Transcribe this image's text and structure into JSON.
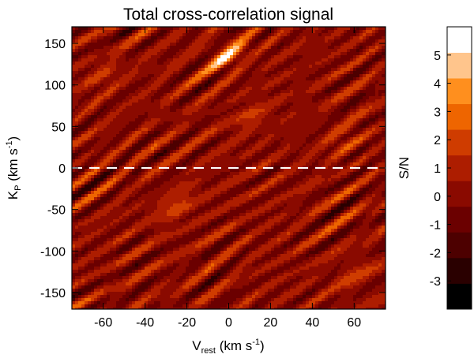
{
  "chart_data": {
    "type": "heatmap",
    "title": "Total cross-correlation signal",
    "xlabel": {
      "main": "V",
      "sub": "rest",
      "unit_pre": " (km s",
      "unit_sup": "-1",
      "unit_post": ")"
    },
    "ylabel": {
      "main": "K",
      "sub": "P",
      "unit_pre": " (km s",
      "unit_sup": "-1",
      "unit_post": ")"
    },
    "xlim": [
      -75,
      75
    ],
    "ylim": [
      -170,
      170
    ],
    "xticks": [
      -60,
      -40,
      -20,
      0,
      20,
      40,
      60
    ],
    "yticks": [
      -150,
      -100,
      -50,
      0,
      50,
      100,
      150
    ],
    "reference_line": {
      "axis": "y",
      "value": 0,
      "style": "dashed",
      "color": "#ffffff"
    },
    "hotspots": [
      {
        "x": 0,
        "y": 135,
        "peak": 5.2
      },
      {
        "x": -25,
        "y": -45,
        "peak": 3.2
      },
      {
        "x": 10,
        "y": 60,
        "peak": 2.5
      },
      {
        "x": -60,
        "y": 110,
        "peak": 2.3
      },
      {
        "x": 55,
        "y": 35,
        "peak": 2.4
      },
      {
        "x": 60,
        "y": -130,
        "peak": 2.3
      }
    ],
    "colorbar": {
      "label": "S/N",
      "range": [
        -4,
        6
      ],
      "ticks": [
        "-3",
        "-2",
        "-1",
        "0",
        "1",
        "2",
        "3",
        "4",
        "5"
      ],
      "levels": [
        "#000000",
        "#2a0000",
        "#4d0000",
        "#6b0000",
        "#8a0a00",
        "#ad1d00",
        "#cf3c00",
        "#ee6500",
        "#ff8f1e",
        "#ffc58c",
        "#ffffff"
      ]
    }
  }
}
